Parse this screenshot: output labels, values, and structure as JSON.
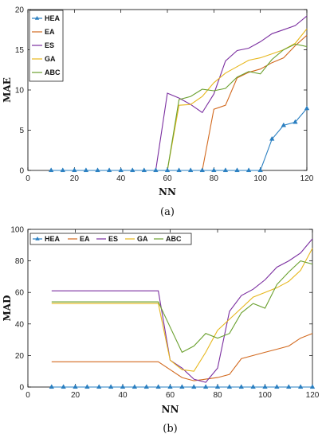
{
  "colors": {
    "HEA": "#2a7fc1",
    "EA": "#d2691e",
    "ES": "#7b2fa0",
    "GA": "#e7b71c",
    "ABC": "#6aa02e"
  },
  "chart_data": [
    {
      "type": "line",
      "caption": "(a)",
      "xlabel": "NN",
      "ylabel": "MAE",
      "xlim": [
        0,
        120
      ],
      "ylim": [
        0,
        20
      ],
      "xticks": [
        0,
        20,
        40,
        60,
        80,
        100,
        120
      ],
      "yticks": [
        0,
        5,
        10,
        15,
        20
      ],
      "legend_position": "top-left",
      "legend_layout": "vertical",
      "series": [
        {
          "name": "HEA",
          "marker": "triangle",
          "x": [
            10,
            15,
            20,
            25,
            30,
            35,
            40,
            45,
            50,
            55,
            60,
            65,
            70,
            75,
            80,
            85,
            90,
            95,
            100,
            105,
            110,
            115,
            120
          ],
          "values": [
            0,
            0,
            0,
            0,
            0,
            0,
            0,
            0,
            0,
            0,
            0,
            0,
            0,
            0,
            0,
            0,
            0,
            0,
            0,
            3.9,
            5.6,
            6.0,
            7.7
          ]
        },
        {
          "name": "EA",
          "x": [
            10,
            15,
            20,
            25,
            30,
            35,
            40,
            45,
            50,
            55,
            60,
            65,
            70,
            75,
            80,
            85,
            90,
            95,
            100,
            105,
            110,
            115,
            120
          ],
          "values": [
            0,
            0,
            0,
            0,
            0,
            0,
            0,
            0,
            0,
            0,
            0,
            0,
            0,
            0,
            7.6,
            8.1,
            11.5,
            12.2,
            12.6,
            13.4,
            14.0,
            15.5,
            16.8
          ]
        },
        {
          "name": "ES",
          "x": [
            10,
            15,
            20,
            25,
            30,
            35,
            40,
            45,
            50,
            55,
            60,
            65,
            70,
            75,
            80,
            85,
            90,
            95,
            100,
            105,
            110,
            115,
            120
          ],
          "values": [
            0,
            0,
            0,
            0,
            0,
            0,
            0,
            0,
            0,
            0,
            9.6,
            9.0,
            8.2,
            7.2,
            9.5,
            13.6,
            14.9,
            15.2,
            16.0,
            17.0,
            17.5,
            18.0,
            19.2
          ]
        },
        {
          "name": "GA",
          "x": [
            10,
            15,
            20,
            25,
            30,
            35,
            40,
            45,
            50,
            55,
            60,
            65,
            70,
            75,
            80,
            85,
            90,
            95,
            100,
            105,
            110,
            115,
            120
          ],
          "values": [
            0,
            0,
            0,
            0,
            0,
            0,
            0,
            0,
            0,
            0,
            0,
            8.1,
            8.2,
            9.2,
            10.9,
            12.1,
            12.9,
            13.7,
            14.0,
            14.5,
            15.0,
            15.8,
            17.6
          ]
        },
        {
          "name": "ABC",
          "x": [
            10,
            15,
            20,
            25,
            30,
            35,
            40,
            45,
            50,
            55,
            60,
            65,
            70,
            75,
            80,
            85,
            90,
            95,
            100,
            105,
            110,
            115,
            120
          ],
          "values": [
            0,
            0,
            0,
            0,
            0,
            0,
            0,
            0,
            0,
            0,
            0,
            8.8,
            9.2,
            10.1,
            9.9,
            10.2,
            11.6,
            12.3,
            12.0,
            13.8,
            15.0,
            15.7,
            15.4
          ]
        }
      ]
    },
    {
      "type": "line",
      "caption": "(b)",
      "xlabel": "NN",
      "ylabel": "MAD",
      "xlim": [
        0,
        120
      ],
      "ylim": [
        0,
        100
      ],
      "xticks": [
        0,
        20,
        40,
        60,
        80,
        100,
        120
      ],
      "yticks": [
        0,
        20,
        40,
        60,
        80,
        100
      ],
      "legend_position": "top-left",
      "legend_layout": "horizontal",
      "series": [
        {
          "name": "HEA",
          "marker": "triangle",
          "x": [
            10,
            15,
            20,
            25,
            30,
            35,
            40,
            45,
            50,
            55,
            60,
            65,
            70,
            75,
            80,
            85,
            90,
            95,
            100,
            105,
            110,
            115,
            120
          ],
          "values": [
            0,
            0,
            0,
            0,
            0,
            0,
            0,
            0,
            0,
            0,
            0,
            0,
            0,
            0,
            0,
            0,
            0,
            0,
            0,
            0,
            0,
            0,
            0
          ]
        },
        {
          "name": "EA",
          "x": [
            10,
            55,
            60,
            65,
            70,
            75,
            80,
            85,
            90,
            95,
            100,
            105,
            110,
            115,
            120
          ],
          "values": [
            16,
            16,
            11,
            6,
            4,
            5,
            6,
            8,
            18,
            20,
            22,
            24,
            26,
            31,
            34
          ]
        },
        {
          "name": "ES",
          "x": [
            10,
            55,
            60,
            65,
            70,
            75,
            80,
            85,
            90,
            95,
            100,
            105,
            110,
            115,
            120
          ],
          "values": [
            61,
            61,
            17,
            12,
            5,
            3,
            12,
            48,
            58,
            62,
            68,
            76,
            80,
            85,
            94
          ]
        },
        {
          "name": "GA",
          "x": [
            10,
            55,
            60,
            65,
            70,
            75,
            80,
            85,
            90,
            95,
            100,
            105,
            110,
            115,
            120
          ],
          "values": [
            53,
            53,
            17,
            11,
            10,
            22,
            36,
            43,
            50,
            57,
            60,
            63,
            67,
            74,
            88
          ]
        },
        {
          "name": "ABC",
          "x": [
            10,
            55,
            60,
            65,
            70,
            75,
            80,
            85,
            90,
            95,
            100,
            105,
            110,
            115,
            120
          ],
          "values": [
            54,
            54,
            38,
            22,
            26,
            34,
            31,
            34,
            47,
            53,
            50,
            65,
            73,
            80,
            78
          ]
        }
      ]
    }
  ]
}
